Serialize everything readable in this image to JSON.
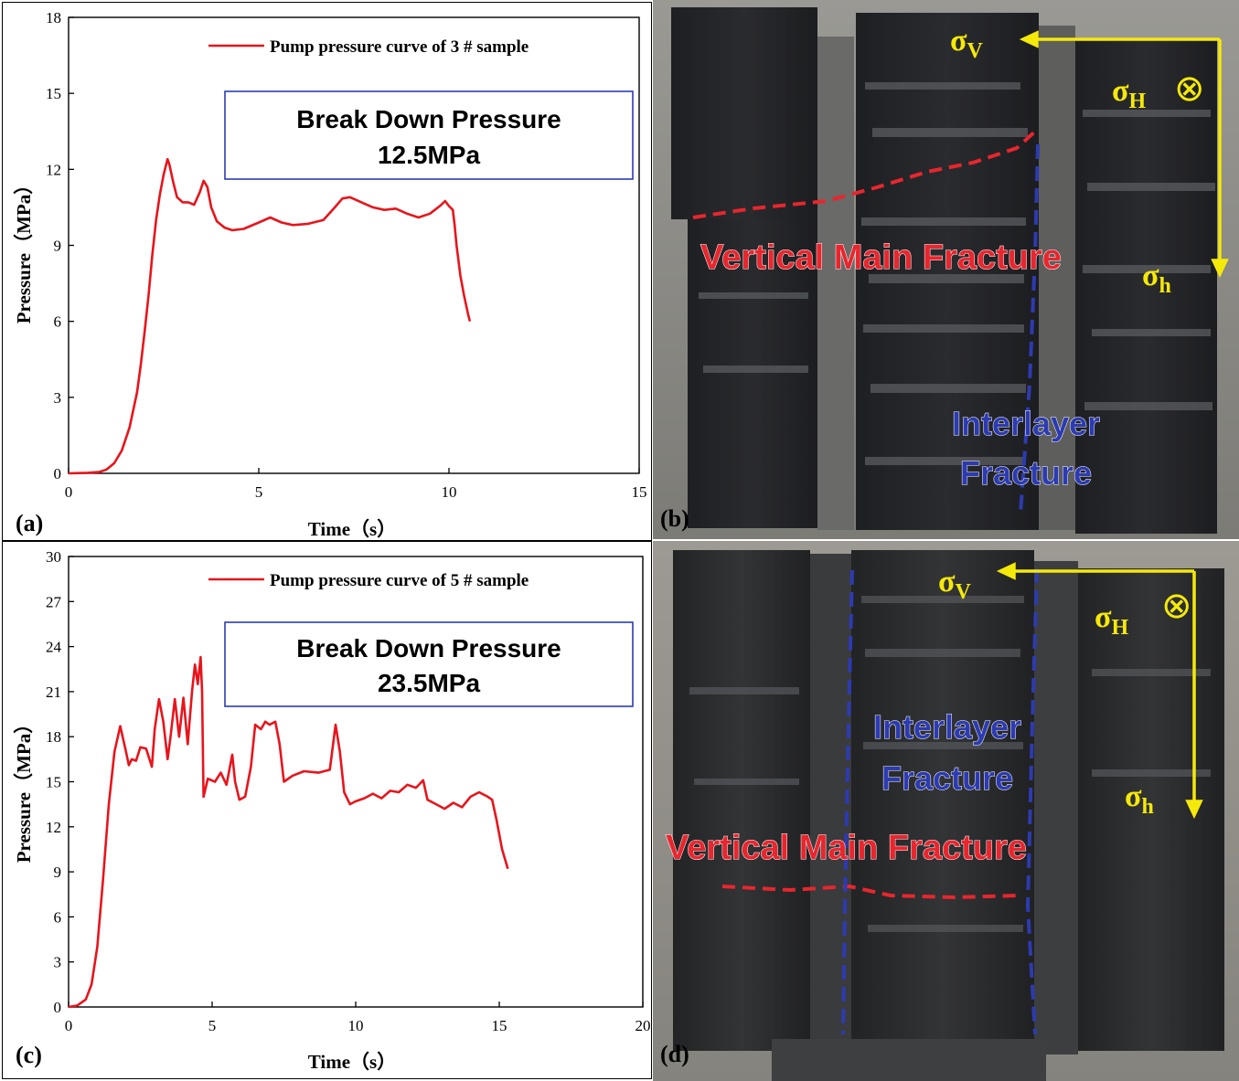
{
  "chart_data": [
    {
      "id": "a",
      "type": "line",
      "panel_label": "(a)",
      "xlabel": "Time（s）",
      "ylabel": "Pressure（MPa）",
      "xlim": [
        0,
        15
      ],
      "ylim": [
        0,
        18
      ],
      "xticks": [
        0,
        5,
        10,
        15
      ],
      "yticks": [
        0,
        3,
        6,
        9,
        12,
        15,
        18
      ],
      "grid": false,
      "legend_position": "top-right",
      "series": [
        {
          "name": "Pump pressure curve of 3 # sample",
          "color": "#e8141c",
          "x": [
            0.0,
            0.5,
            0.8,
            1.0,
            1.2,
            1.4,
            1.6,
            1.8,
            1.9,
            2.0,
            2.1,
            2.2,
            2.3,
            2.4,
            2.5,
            2.6,
            2.65,
            2.75,
            2.85,
            3.0,
            3.15,
            3.3,
            3.45,
            3.55,
            3.65,
            3.75,
            3.9,
            4.1,
            4.3,
            4.6,
            5.0,
            5.3,
            5.6,
            5.9,
            6.3,
            6.7,
            7.0,
            7.2,
            7.4,
            7.7,
            8.0,
            8.3,
            8.6,
            8.9,
            9.2,
            9.5,
            9.8,
            9.9,
            10.0,
            10.1,
            10.15,
            10.2,
            10.3,
            10.4,
            10.5,
            10.55
          ],
          "y": [
            0.0,
            0.02,
            0.05,
            0.15,
            0.4,
            0.9,
            1.8,
            3.2,
            4.3,
            5.6,
            7.0,
            8.6,
            10.0,
            11.0,
            11.8,
            12.4,
            12.2,
            11.5,
            10.9,
            10.7,
            10.7,
            10.6,
            11.1,
            11.55,
            11.3,
            10.5,
            9.95,
            9.7,
            9.6,
            9.65,
            9.9,
            10.1,
            9.9,
            9.8,
            9.85,
            10.0,
            10.5,
            10.85,
            10.9,
            10.7,
            10.5,
            10.4,
            10.45,
            10.25,
            10.1,
            10.25,
            10.6,
            10.75,
            10.55,
            10.4,
            9.8,
            9.0,
            7.8,
            7.0,
            6.3,
            6.0
          ]
        }
      ],
      "annotation": [
        "Break Down Pressure",
        "12.5MPa"
      ]
    },
    {
      "id": "c",
      "type": "line",
      "panel_label": "(c)",
      "xlabel": "Time（s）",
      "ylabel": "Pressure（MPa）",
      "xlim": [
        0,
        20
      ],
      "ylim": [
        0,
        30
      ],
      "xticks": [
        0,
        5,
        10,
        15,
        20
      ],
      "yticks": [
        0,
        3,
        6,
        9,
        12,
        15,
        18,
        21,
        24,
        27,
        30
      ],
      "grid": false,
      "legend_position": "top-right",
      "series": [
        {
          "name": "Pump pressure curve of 5 # sample",
          "color": "#e8141c",
          "x": [
            0.0,
            0.3,
            0.6,
            0.8,
            1.0,
            1.2,
            1.4,
            1.6,
            1.8,
            2.0,
            2.1,
            2.2,
            2.35,
            2.5,
            2.7,
            2.9,
            3.0,
            3.15,
            3.3,
            3.45,
            3.55,
            3.7,
            3.85,
            4.0,
            4.15,
            4.3,
            4.4,
            4.5,
            4.6,
            4.65,
            4.7,
            4.85,
            5.1,
            5.3,
            5.5,
            5.7,
            5.8,
            5.95,
            6.15,
            6.35,
            6.5,
            6.7,
            6.85,
            7.0,
            7.2,
            7.35,
            7.5,
            7.8,
            8.2,
            8.7,
            9.1,
            9.3,
            9.45,
            9.6,
            9.8,
            10.0,
            10.3,
            10.6,
            10.9,
            11.2,
            11.5,
            11.8,
            12.1,
            12.35,
            12.5,
            12.8,
            13.1,
            13.4,
            13.7,
            14.0,
            14.3,
            14.6,
            14.75,
            14.9,
            15.1,
            15.3
          ],
          "y": [
            0.0,
            0.1,
            0.5,
            1.5,
            4.0,
            8.5,
            13.5,
            17.0,
            18.7,
            17.0,
            16.1,
            16.5,
            16.4,
            17.3,
            17.2,
            16.0,
            18.5,
            20.5,
            19.0,
            16.5,
            18.0,
            20.5,
            18.0,
            20.6,
            17.5,
            21.0,
            22.8,
            21.5,
            23.3,
            21.0,
            14.0,
            15.2,
            15.0,
            15.6,
            14.8,
            16.8,
            15.0,
            13.8,
            14.0,
            16.0,
            18.8,
            18.5,
            19.0,
            18.8,
            19.0,
            17.5,
            15.0,
            15.4,
            15.7,
            15.6,
            15.8,
            18.8,
            17.0,
            14.3,
            13.5,
            13.7,
            13.9,
            14.2,
            13.9,
            14.4,
            14.3,
            14.8,
            14.6,
            15.1,
            13.8,
            13.5,
            13.2,
            13.6,
            13.3,
            14.0,
            14.3,
            14.0,
            13.8,
            12.5,
            10.5,
            9.2
          ]
        }
      ],
      "annotation": [
        "Break Down Pressure",
        "23.5MPa"
      ]
    }
  ],
  "photos": [
    {
      "id": "b",
      "panel_label": "(b)",
      "stress_v": "σ",
      "stress_v_sub": "V",
      "stress_H": "σ",
      "stress_H_sub": "H",
      "stress_h": "σ",
      "stress_h_sub": "h",
      "out_of_plane_symbol": "⊗",
      "label_vertical": "Vertical Main Fracture",
      "label_interlayer_1": "Interlayer",
      "label_interlayer_2": "Fracture",
      "colors": {
        "vertical": "#e8262e",
        "interlayer": "#2d3bb0",
        "stress": "#f5e90a"
      }
    },
    {
      "id": "d",
      "panel_label": "(d)",
      "stress_v": "σ",
      "stress_v_sub": "V",
      "stress_H": "σ",
      "stress_H_sub": "H",
      "stress_h": "σ",
      "stress_h_sub": "h",
      "out_of_plane_symbol": "⊗",
      "label_vertical": "Vertical Main Fracture",
      "label_interlayer_1": "Interlayer",
      "label_interlayer_2": "Fracture",
      "colors": {
        "vertical": "#e8262e",
        "interlayer": "#2d3bb0",
        "stress": "#f5e90a"
      }
    }
  ]
}
